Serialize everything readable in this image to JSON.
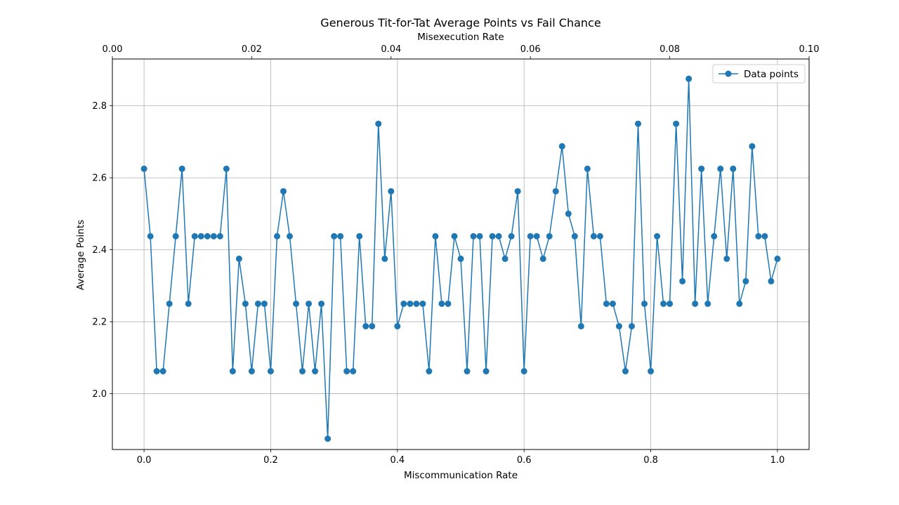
{
  "chart_data": {
    "type": "line",
    "title": "Generous Tit-for-Tat Average Points vs Fail Chance",
    "xlabel": "Miscommunication Rate",
    "ylabel": "Average Points",
    "top_xlabel": "Misexecution Rate",
    "xlim": [
      -0.05,
      1.05
    ],
    "ylim": [
      1.845,
      2.93
    ],
    "top_xlim": [
      0.0,
      0.1
    ],
    "x_ticks": [
      "0.0",
      "0.2",
      "0.4",
      "0.6",
      "0.8",
      "1.0"
    ],
    "x_tick_values": [
      0.0,
      0.2,
      0.4,
      0.6,
      0.8,
      1.0
    ],
    "y_ticks": [
      "2.0",
      "2.2",
      "2.4",
      "2.6",
      "2.8"
    ],
    "y_tick_values": [
      2.0,
      2.2,
      2.4,
      2.6,
      2.8
    ],
    "top_x_ticks": [
      "0.00",
      "0.02",
      "0.04",
      "0.06",
      "0.08",
      "0.10"
    ],
    "top_x_tick_values": [
      0.0,
      0.02,
      0.04,
      0.06,
      0.08,
      0.1
    ],
    "grid": true,
    "legend": {
      "position": "top-right",
      "entries": [
        "Data points"
      ]
    },
    "colors": {
      "series": "#1f77b4",
      "grid": "#b0b0b0",
      "axes": "#000000"
    },
    "series": [
      {
        "name": "Data points",
        "marker": "circle",
        "x": [
          0.0,
          0.01,
          0.02,
          0.03,
          0.04,
          0.05,
          0.06,
          0.07,
          0.08,
          0.09,
          0.1,
          0.11,
          0.12,
          0.13,
          0.14,
          0.15,
          0.16,
          0.17,
          0.18,
          0.19,
          0.2,
          0.21,
          0.22,
          0.23,
          0.24,
          0.25,
          0.26,
          0.27,
          0.28,
          0.29,
          0.3,
          0.31,
          0.32,
          0.33,
          0.34,
          0.35,
          0.36,
          0.37,
          0.38,
          0.39,
          0.4,
          0.41,
          0.42,
          0.43,
          0.44,
          0.45,
          0.46,
          0.47,
          0.48,
          0.49,
          0.5,
          0.51,
          0.52,
          0.53,
          0.54,
          0.55,
          0.56,
          0.57,
          0.58,
          0.59,
          0.6,
          0.61,
          0.62,
          0.63,
          0.64,
          0.65,
          0.66,
          0.67,
          0.68,
          0.69,
          0.7,
          0.71,
          0.72,
          0.73,
          0.74,
          0.75,
          0.76,
          0.77,
          0.78,
          0.79,
          0.8,
          0.81,
          0.82,
          0.83,
          0.84,
          0.85,
          0.86,
          0.87,
          0.88,
          0.89,
          0.9,
          0.91,
          0.92,
          0.93,
          0.94,
          0.95,
          0.96,
          0.97,
          0.98,
          0.99,
          1.0
        ],
        "values": [
          2.625,
          2.4375,
          2.0625,
          2.0625,
          2.25,
          2.4375,
          2.625,
          2.25,
          2.4375,
          2.4375,
          2.4375,
          2.4375,
          2.4375,
          2.625,
          2.0625,
          2.375,
          2.25,
          2.0625,
          2.25,
          2.25,
          2.0625,
          2.4375,
          2.5625,
          2.4375,
          2.25,
          2.0625,
          2.25,
          2.0625,
          2.25,
          1.875,
          2.4375,
          2.4375,
          2.0625,
          2.0625,
          2.4375,
          2.1875,
          2.1875,
          2.75,
          2.375,
          2.5625,
          2.1875,
          2.25,
          2.25,
          2.25,
          2.25,
          2.0625,
          2.4375,
          2.25,
          2.25,
          2.4375,
          2.375,
          2.0625,
          2.4375,
          2.4375,
          2.0625,
          2.4375,
          2.4375,
          2.375,
          2.4375,
          2.5625,
          2.0625,
          2.4375,
          2.4375,
          2.375,
          2.4375,
          2.5625,
          2.6875,
          2.5,
          2.4375,
          2.1875,
          2.625,
          2.4375,
          2.4375,
          2.25,
          2.25,
          2.1875,
          2.0625,
          2.1875,
          2.75,
          2.25,
          2.0625,
          2.4375,
          2.25,
          2.25,
          2.75,
          2.3125,
          2.875,
          2.25,
          2.625,
          2.25,
          2.4375,
          2.625,
          2.375,
          2.625,
          2.25,
          2.3125,
          2.6875,
          2.4375,
          2.4375,
          2.3125,
          2.375
        ]
      }
    ]
  }
}
